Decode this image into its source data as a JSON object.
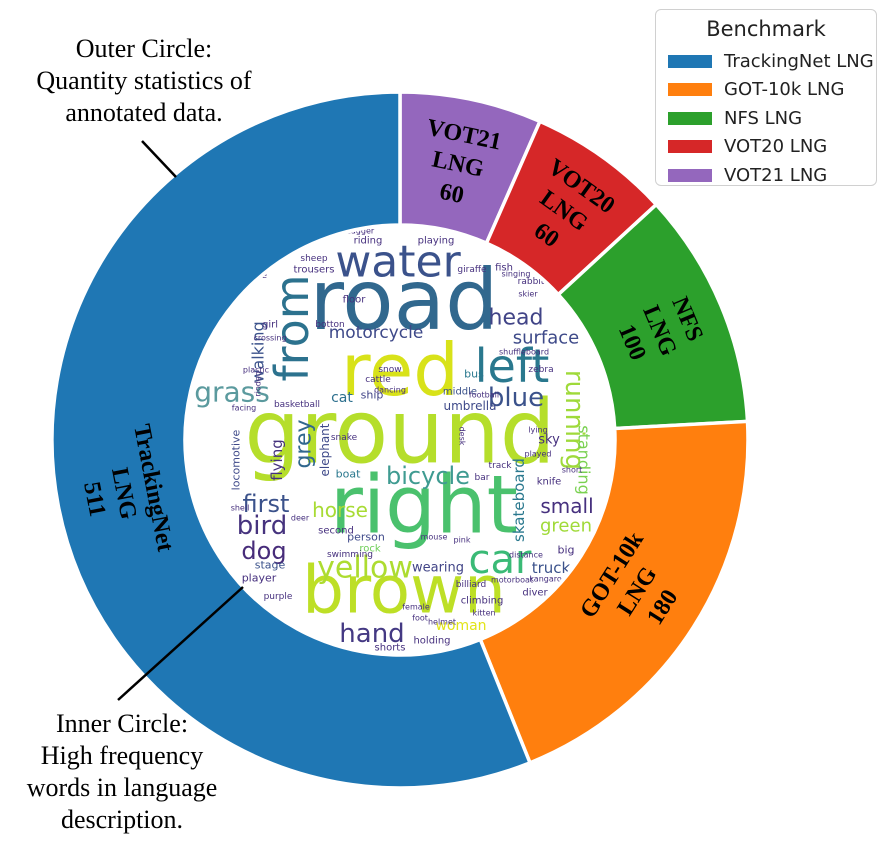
{
  "chart_data": {
    "type": "pie",
    "legend": {
      "title": "Benchmark",
      "placement": "top-right",
      "entries": [
        "TrackingNet LNG",
        "GOT-10k LNG",
        "NFS LNG",
        "VOT20 LNG",
        "VOT21 LNG"
      ]
    },
    "slices": [
      {
        "label": "VOT21 LNG",
        "value": 60,
        "color": "#9467bd",
        "text": [
          "VOT21",
          "LNG",
          "60"
        ]
      },
      {
        "label": "VOT20 LNG",
        "value": 60,
        "color": "#d62728",
        "text": [
          "VOT20",
          "LNG",
          "60"
        ]
      },
      {
        "label": "NFS LNG",
        "value": 100,
        "color": "#2ca02c",
        "text": [
          "NFS",
          "LNG",
          "100"
        ]
      },
      {
        "label": "GOT-10k LNG",
        "value": 180,
        "color": "#ff7f0e",
        "text": [
          "GOT-10k",
          "LNG",
          "180"
        ]
      },
      {
        "label": "TrackingNet LNG",
        "value": 511,
        "color": "#1f77b4",
        "text": [
          "TrackingNet",
          "LNG",
          "511"
        ]
      }
    ],
    "annotations": {
      "outer": [
        "Outer Circle:",
        "Quantity statistics of",
        "annotated data."
      ],
      "inner": [
        "Inner Circle:",
        "High frequency",
        "words in language",
        "description."
      ]
    },
    "wordcloud": [
      {
        "text": "ground",
        "color": "#b5de2b"
      },
      {
        "text": "road",
        "color": "#31688e"
      },
      {
        "text": "right",
        "color": "#4ac16d"
      },
      {
        "text": "red",
        "color": "#d8e219"
      },
      {
        "text": "brown",
        "color": "#bddf26"
      },
      {
        "text": "water",
        "color": "#3b528b"
      },
      {
        "text": "left",
        "color": "#2a788e"
      },
      {
        "text": "from",
        "color": "#2c728e"
      },
      {
        "text": "yellow",
        "color": "#addc30"
      },
      {
        "text": "car",
        "color": "#3aba76"
      },
      {
        "text": "grass",
        "color": "#5b9a9e"
      },
      {
        "text": "blue",
        "color": "#3b528b"
      },
      {
        "text": "bicycle",
        "color": "#3f9b91"
      },
      {
        "text": "bird",
        "color": "#46337e"
      },
      {
        "text": "dog",
        "color": "#472c7a"
      },
      {
        "text": "hand",
        "color": "#443983"
      },
      {
        "text": "first",
        "color": "#3b528b"
      },
      {
        "text": "grey",
        "color": "#31688e"
      },
      {
        "text": "head",
        "color": "#414487"
      },
      {
        "text": "running",
        "color": "#9fda3a"
      },
      {
        "text": "standing",
        "color": "#7ad151"
      },
      {
        "text": "surface",
        "color": "#3e4a89"
      },
      {
        "text": "small",
        "color": "#46307e"
      },
      {
        "text": "green",
        "color": "#a0da39"
      },
      {
        "text": "horse",
        "color": "#a8db34"
      },
      {
        "text": "woman",
        "color": "#e2e418"
      },
      {
        "text": "motorcycle",
        "color": "#3e4989"
      },
      {
        "text": "skateboard",
        "color": "#2a788e"
      },
      {
        "text": "walking",
        "color": "#3b528b"
      },
      {
        "text": "wearing",
        "color": "#414487"
      },
      {
        "text": "flying",
        "color": "#46337e"
      },
      {
        "text": "truck",
        "color": "#3b528b"
      },
      {
        "text": "cat",
        "color": "#2d708e"
      },
      {
        "text": "umbrella",
        "color": "#3e4989"
      },
      {
        "text": "riding",
        "color": "#46307e"
      },
      {
        "text": "playing",
        "color": "#46307e"
      },
      {
        "text": "second",
        "color": "#46307e"
      },
      {
        "text": "elephant",
        "color": "#3e4989"
      },
      {
        "text": "boat",
        "color": "#2a788e"
      },
      {
        "text": "bus",
        "color": "#2a788e"
      },
      {
        "text": "middle",
        "color": "#3b528b"
      },
      {
        "text": "ship",
        "color": "#414487"
      },
      {
        "text": "sky",
        "color": "#46307e"
      },
      {
        "text": "snake",
        "color": "#46307e"
      },
      {
        "text": "person",
        "color": "#3e4989"
      },
      {
        "text": "rock",
        "color": "#6ece58"
      },
      {
        "text": "stage",
        "color": "#3b528b"
      },
      {
        "text": "player",
        "color": "#46307e"
      },
      {
        "text": "holding",
        "color": "#46307e"
      },
      {
        "text": "shorts",
        "color": "#46307e"
      },
      {
        "text": "diver",
        "color": "#46307e"
      },
      {
        "text": "basketball",
        "color": "#46307e"
      },
      {
        "text": "locomotive",
        "color": "#3e4989"
      },
      {
        "text": "girl",
        "color": "#46307e"
      },
      {
        "text": "floor",
        "color": "#46307e"
      },
      {
        "text": "giraffe",
        "color": "#46307e"
      },
      {
        "text": "rabbit",
        "color": "#46307e"
      },
      {
        "text": "fish",
        "color": "#46307e"
      },
      {
        "text": "zebra",
        "color": "#46307e"
      },
      {
        "text": "track",
        "color": "#46307e"
      },
      {
        "text": "knife",
        "color": "#46307e"
      },
      {
        "text": "distance",
        "color": "#46307e"
      },
      {
        "text": "big",
        "color": "#46307e"
      },
      {
        "text": "climbing",
        "color": "#46307e"
      },
      {
        "text": "snow",
        "color": "#46307e"
      },
      {
        "text": "cattle",
        "color": "#46307e"
      },
      {
        "text": "tree",
        "color": "#46307e"
      },
      {
        "text": "trousers",
        "color": "#46307e"
      },
      {
        "text": "sheep",
        "color": "#46307e"
      },
      {
        "text": "dagger",
        "color": "#46307e"
      },
      {
        "text": "botton",
        "color": "#46307e"
      },
      {
        "text": "crossing",
        "color": "#46307e"
      },
      {
        "text": "plastic",
        "color": "#46307e"
      },
      {
        "text": "dancing",
        "color": "#46307e"
      },
      {
        "text": "football",
        "color": "#46307e"
      },
      {
        "text": "lying",
        "color": "#46307e"
      },
      {
        "text": "billiard",
        "color": "#46307e"
      },
      {
        "text": "mouse",
        "color": "#46307e"
      },
      {
        "text": "swimming",
        "color": "#46307e"
      },
      {
        "text": "purple",
        "color": "#46307e"
      },
      {
        "text": "singing",
        "color": "#46307e"
      },
      {
        "text": "next",
        "color": "#46307e"
      },
      {
        "text": "shuffleboard",
        "color": "#46307e"
      },
      {
        "text": "riodeo",
        "color": "#46307e"
      },
      {
        "text": "jet",
        "color": "#46307e"
      },
      {
        "text": "female",
        "color": "#46307e"
      },
      {
        "text": "foot",
        "color": "#46307e"
      },
      {
        "text": "helmet",
        "color": "#46307e"
      },
      {
        "text": "kangaroo",
        "color": "#46307e"
      },
      {
        "text": "kitten",
        "color": "#46307e"
      },
      {
        "text": "motorboat",
        "color": "#46307e"
      },
      {
        "text": "skier",
        "color": "#46307e"
      },
      {
        "text": "bar",
        "color": "#46307e"
      },
      {
        "text": "deer",
        "color": "#46307e"
      },
      {
        "text": "short",
        "color": "#46307e"
      },
      {
        "text": "played",
        "color": "#46307e"
      },
      {
        "text": "facing",
        "color": "#46307e"
      },
      {
        "text": "desk",
        "color": "#46307e"
      },
      {
        "text": "pink",
        "color": "#46307e"
      },
      {
        "text": "shell",
        "color": "#46307e"
      }
    ]
  }
}
